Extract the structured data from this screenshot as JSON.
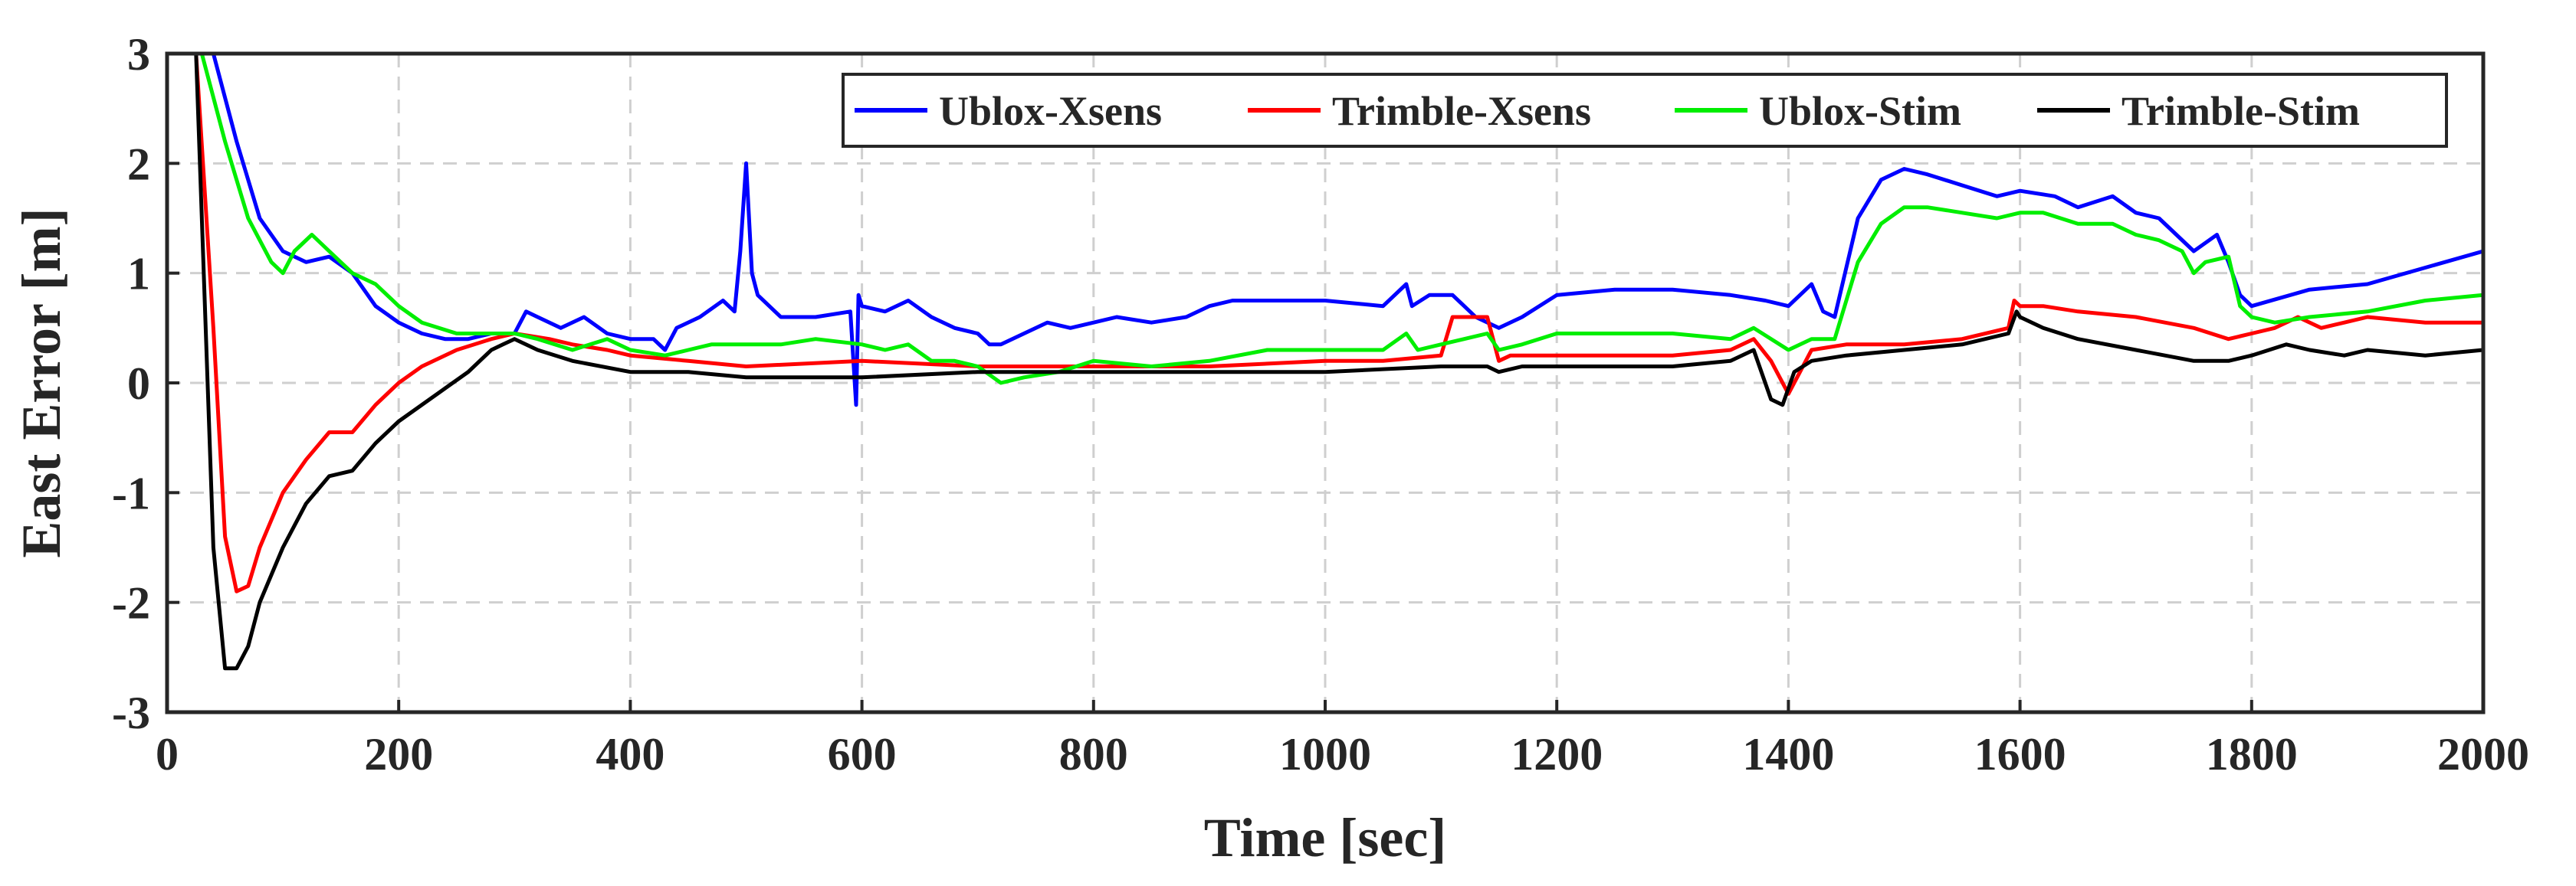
{
  "chart_data": {
    "type": "line",
    "title": "",
    "xlabel": "Time [sec]",
    "ylabel": "East Error [m]",
    "xlim": [
      0,
      2000
    ],
    "ylim": [
      -3,
      3
    ],
    "xticks": [
      "0",
      "200",
      "400",
      "600",
      "800",
      "1000",
      "1200",
      "1400",
      "1600",
      "1800",
      "2000"
    ],
    "yticks": [
      "-3",
      "-2",
      "-1",
      "0",
      "1",
      "2",
      "3"
    ],
    "grid": true,
    "legend_position": "top-right",
    "series": [
      {
        "name": "Ublox-Xsens",
        "color": "#0000ff",
        "x": [
          0,
          20,
          40,
          60,
          80,
          100,
          120,
          140,
          160,
          180,
          200,
          220,
          240,
          260,
          280,
          300,
          310,
          320,
          340,
          360,
          380,
          400,
          420,
          430,
          440,
          460,
          480,
          490,
          495,
          500,
          505,
          510,
          530,
          560,
          590,
          595,
          597,
          600,
          620,
          640,
          660,
          680,
          700,
          710,
          720,
          740,
          760,
          780,
          800,
          820,
          850,
          880,
          900,
          920,
          950,
          1000,
          1050,
          1070,
          1075,
          1090,
          1110,
          1130,
          1150,
          1170,
          1200,
          1250,
          1300,
          1350,
          1380,
          1400,
          1420,
          1430,
          1440,
          1460,
          1480,
          1500,
          1520,
          1550,
          1580,
          1600,
          1630,
          1650,
          1680,
          1700,
          1720,
          1750,
          1770,
          1780,
          1790,
          1800,
          1850,
          1900,
          1950,
          2000
        ],
        "y": [
          3,
          3,
          3,
          2.2,
          1.5,
          1.2,
          1.1,
          1.15,
          1.0,
          0.7,
          0.55,
          0.45,
          0.4,
          0.4,
          0.45,
          0.45,
          0.65,
          0.6,
          0.5,
          0.6,
          0.45,
          0.4,
          0.4,
          0.3,
          0.5,
          0.6,
          0.75,
          0.65,
          1.2,
          2.0,
          1.0,
          0.8,
          0.6,
          0.6,
          0.65,
          -0.2,
          0.8,
          0.7,
          0.65,
          0.75,
          0.6,
          0.5,
          0.45,
          0.35,
          0.35,
          0.45,
          0.55,
          0.5,
          0.55,
          0.6,
          0.55,
          0.6,
          0.7,
          0.75,
          0.75,
          0.75,
          0.7,
          0.9,
          0.7,
          0.8,
          0.8,
          0.6,
          0.5,
          0.6,
          0.8,
          0.85,
          0.85,
          0.8,
          0.75,
          0.7,
          0.9,
          0.65,
          0.6,
          1.5,
          1.85,
          1.95,
          1.9,
          1.8,
          1.7,
          1.75,
          1.7,
          1.6,
          1.7,
          1.55,
          1.5,
          1.2,
          1.35,
          1.1,
          0.8,
          0.7,
          0.85,
          0.9,
          1.05,
          1.2
        ]
      },
      {
        "name": "Trimble-Xsens",
        "color": "#ff0000",
        "x": [
          0,
          25,
          40,
          50,
          60,
          70,
          80,
          100,
          120,
          140,
          160,
          180,
          200,
          220,
          250,
          280,
          300,
          330,
          350,
          380,
          400,
          450,
          500,
          600,
          700,
          800,
          900,
          1000,
          1050,
          1100,
          1110,
          1120,
          1140,
          1150,
          1160,
          1200,
          1250,
          1300,
          1350,
          1370,
          1385,
          1400,
          1410,
          1420,
          1450,
          1500,
          1550,
          1590,
          1595,
          1600,
          1620,
          1650,
          1700,
          1750,
          1780,
          1800,
          1820,
          1840,
          1860,
          1880,
          1900,
          1950,
          2000
        ],
        "y": [
          3,
          3,
          0.5,
          -1.4,
          -1.9,
          -1.85,
          -1.5,
          -1.0,
          -0.7,
          -0.45,
          -0.45,
          -0.2,
          0.0,
          0.15,
          0.3,
          0.4,
          0.45,
          0.4,
          0.35,
          0.3,
          0.25,
          0.2,
          0.15,
          0.2,
          0.15,
          0.15,
          0.15,
          0.2,
          0.2,
          0.25,
          0.6,
          0.6,
          0.6,
          0.2,
          0.25,
          0.25,
          0.25,
          0.25,
          0.3,
          0.4,
          0.2,
          -0.1,
          0.1,
          0.3,
          0.35,
          0.35,
          0.4,
          0.5,
          0.75,
          0.7,
          0.7,
          0.65,
          0.6,
          0.5,
          0.4,
          0.45,
          0.5,
          0.6,
          0.5,
          0.55,
          0.6,
          0.55,
          0.55
        ]
      },
      {
        "name": "Ublox-Stim",
        "color": "#00ee00",
        "x": [
          0,
          30,
          50,
          70,
          90,
          100,
          110,
          125,
          140,
          160,
          180,
          200,
          220,
          250,
          280,
          300,
          320,
          350,
          380,
          400,
          430,
          450,
          470,
          500,
          530,
          560,
          600,
          620,
          640,
          660,
          680,
          700,
          720,
          740,
          770,
          800,
          850,
          900,
          950,
          1000,
          1050,
          1070,
          1080,
          1100,
          1120,
          1140,
          1150,
          1170,
          1200,
          1250,
          1300,
          1350,
          1370,
          1400,
          1420,
          1440,
          1460,
          1480,
          1500,
          1520,
          1550,
          1580,
          1600,
          1620,
          1650,
          1680,
          1700,
          1720,
          1740,
          1750,
          1760,
          1780,
          1790,
          1800,
          1820,
          1850,
          1900,
          1950,
          2000
        ],
        "y": [
          3,
          3,
          2.2,
          1.5,
          1.1,
          1.0,
          1.2,
          1.35,
          1.2,
          1.0,
          0.9,
          0.7,
          0.55,
          0.45,
          0.45,
          0.45,
          0.4,
          0.3,
          0.4,
          0.3,
          0.25,
          0.3,
          0.35,
          0.35,
          0.35,
          0.4,
          0.35,
          0.3,
          0.35,
          0.2,
          0.2,
          0.15,
          0.0,
          0.05,
          0.1,
          0.2,
          0.15,
          0.2,
          0.3,
          0.3,
          0.3,
          0.45,
          0.3,
          0.35,
          0.4,
          0.45,
          0.3,
          0.35,
          0.45,
          0.45,
          0.45,
          0.4,
          0.5,
          0.3,
          0.4,
          0.4,
          1.1,
          1.45,
          1.6,
          1.6,
          1.55,
          1.5,
          1.55,
          1.55,
          1.45,
          1.45,
          1.35,
          1.3,
          1.2,
          1.0,
          1.1,
          1.15,
          0.7,
          0.6,
          0.55,
          0.6,
          0.65,
          0.75,
          0.8
        ]
      },
      {
        "name": "Trimble-Stim",
        "color": "#000000",
        "x": [
          0,
          25,
          40,
          50,
          60,
          70,
          80,
          100,
          120,
          140,
          160,
          180,
          200,
          220,
          240,
          260,
          280,
          290,
          300,
          320,
          350,
          400,
          450,
          500,
          600,
          700,
          800,
          900,
          1000,
          1100,
          1140,
          1150,
          1170,
          1200,
          1250,
          1300,
          1350,
          1370,
          1385,
          1395,
          1405,
          1420,
          1450,
          1500,
          1550,
          1590,
          1597,
          1600,
          1620,
          1650,
          1700,
          1750,
          1780,
          1800,
          1830,
          1850,
          1880,
          1900,
          1950,
          2000
        ],
        "y": [
          3,
          3,
          -1.5,
          -2.6,
          -2.6,
          -2.4,
          -2.0,
          -1.5,
          -1.1,
          -0.85,
          -0.8,
          -0.55,
          -0.35,
          -0.2,
          -0.05,
          0.1,
          0.3,
          0.35,
          0.4,
          0.3,
          0.2,
          0.1,
          0.1,
          0.05,
          0.05,
          0.1,
          0.1,
          0.1,
          0.1,
          0.15,
          0.15,
          0.1,
          0.15,
          0.15,
          0.15,
          0.15,
          0.2,
          0.3,
          -0.15,
          -0.2,
          0.1,
          0.2,
          0.25,
          0.3,
          0.35,
          0.45,
          0.65,
          0.6,
          0.5,
          0.4,
          0.3,
          0.2,
          0.2,
          0.25,
          0.35,
          0.3,
          0.25,
          0.3,
          0.25,
          0.3
        ]
      }
    ]
  }
}
